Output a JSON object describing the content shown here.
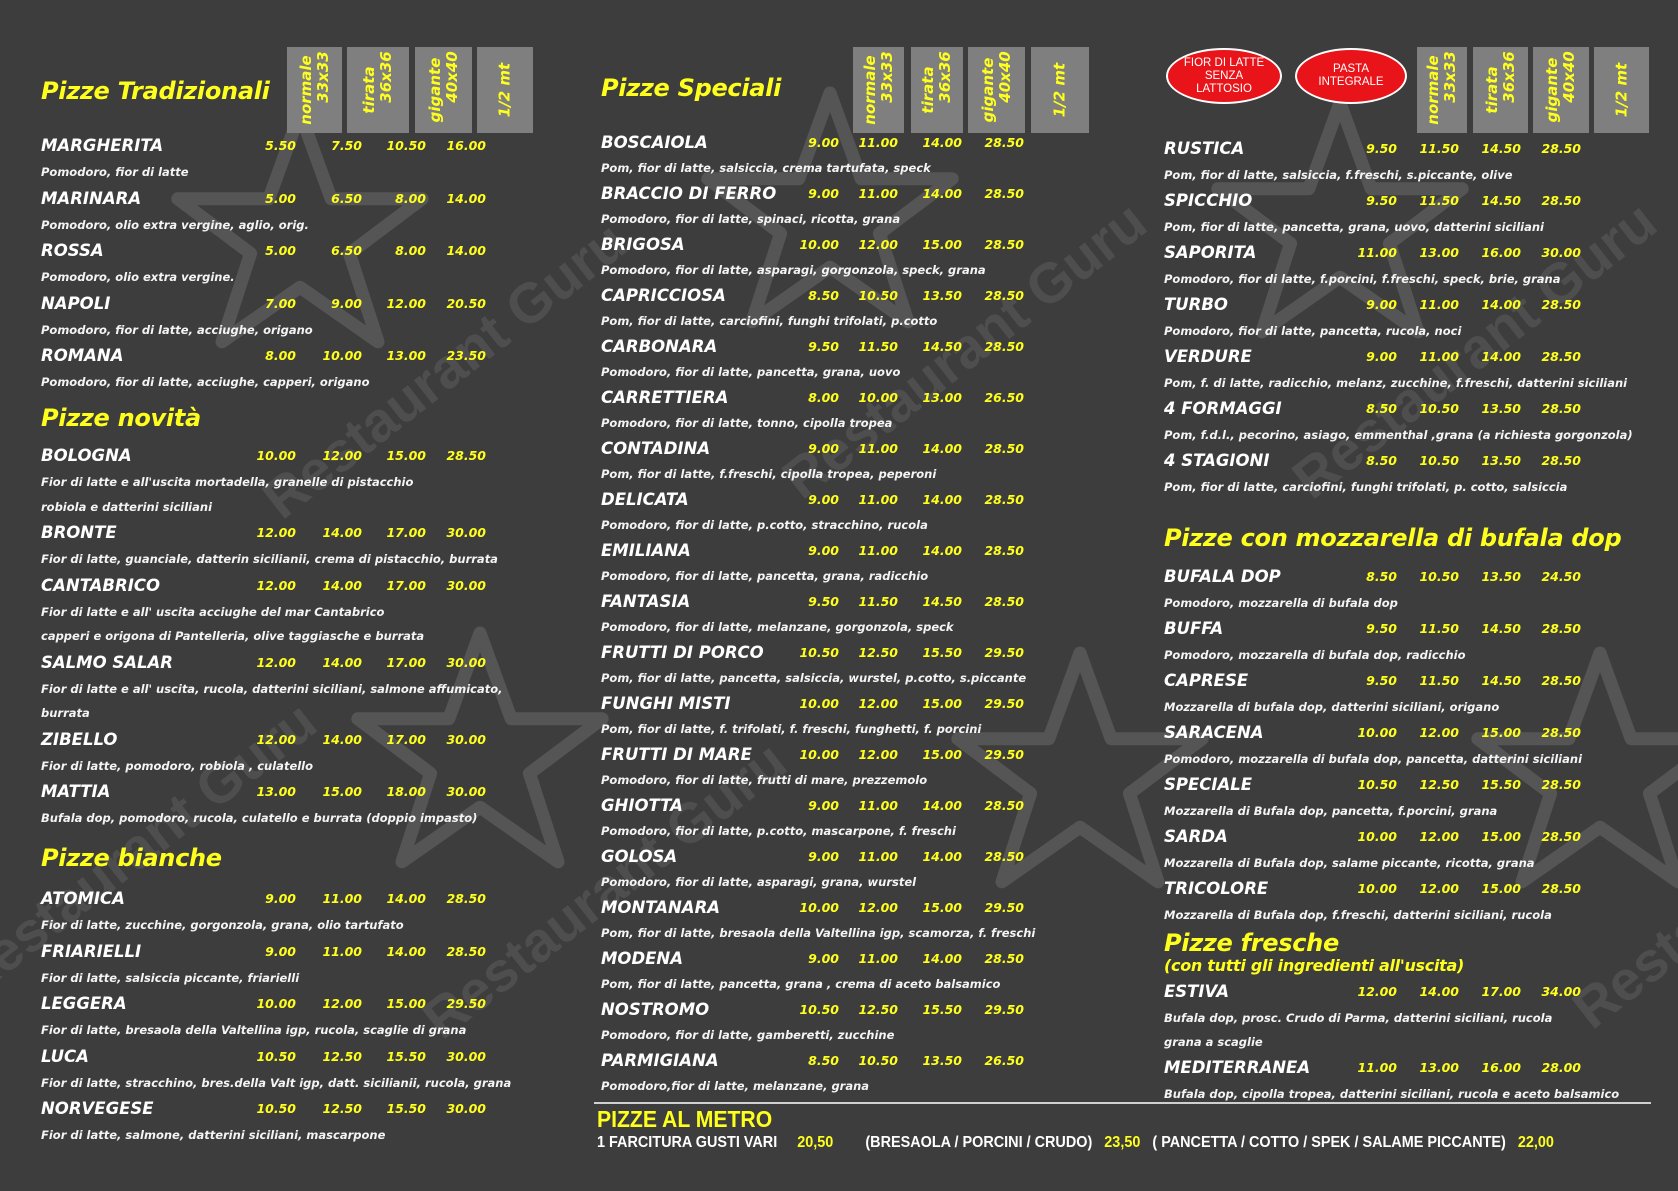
{
  "watermark": "Restaurant Guru",
  "sizes": [
    {
      "name": "normale",
      "dim": "33x33"
    },
    {
      "name": "tirata",
      "dim": "36x36"
    },
    {
      "name": "gigante",
      "dim": "40x40"
    },
    {
      "name": "1/2 mt",
      "dim": ""
    }
  ],
  "badges": [
    "FIOR DI LATTE SENZA LATTOSIO",
    "PASTA INTEGRALE"
  ],
  "columns": [
    {
      "sections": [
        {
          "title": "Pizze Tradizionali",
          "items": [
            {
              "name": "MARGHERITA",
              "prices": [
                "5.50",
                "7.50",
                "10.50",
                "16.00"
              ],
              "desc": [
                "Pomodoro, fior di latte"
              ]
            },
            {
              "name": "MARINARA",
              "prices": [
                "5.00",
                "6.50",
                "8.00",
                "14.00"
              ],
              "desc": [
                "Pomodoro, olio extra vergine, aglio, orig."
              ]
            },
            {
              "name": "ROSSA",
              "prices": [
                "5.00",
                "6.50",
                "8.00",
                "14.00"
              ],
              "desc": [
                "Pomodoro, olio extra vergine."
              ]
            },
            {
              "name": "NAPOLI",
              "prices": [
                "7.00",
                "9.00",
                "12.00",
                "20.50"
              ],
              "desc": [
                "Pomodoro, fior di latte, acciughe, origano"
              ]
            },
            {
              "name": "ROMANA",
              "prices": [
                "8.00",
                "10.00",
                "13.00",
                "23.50"
              ],
              "desc": [
                "Pomodoro, fior di latte, acciughe, capperi, origano"
              ]
            }
          ]
        },
        {
          "title": "Pizze novità",
          "items": [
            {
              "name": "BOLOGNA",
              "prices": [
                "10.00",
                "12.00",
                "15.00",
                "28.50"
              ],
              "desc": [
                "Fior di latte e all'uscita mortadella, granelle di pistacchio",
                "robiola e datterini siciliani"
              ]
            },
            {
              "name": "BRONTE",
              "prices": [
                "12.00",
                "14.00",
                "17.00",
                "30.00"
              ],
              "desc": [
                "Fior di latte, guanciale, datterin sicilianii,  crema di pistacchio, burrata"
              ]
            },
            {
              "name": "CANTABRICO",
              "prices": [
                "12.00",
                "14.00",
                "17.00",
                "30.00"
              ],
              "desc": [
                "Fior di latte e all' uscita acciughe del mar Cantabrico",
                "capperi e origona di Pantelleria, olive taggiasche e burrata"
              ]
            },
            {
              "name": "SALMO SALAR",
              "prices": [
                "12.00",
                "14.00",
                "17.00",
                "30.00"
              ],
              "desc": [
                "Fior di latte e all' uscita, rucola, datterini siciliani, salmone affumicato,",
                "burrata"
              ]
            },
            {
              "name": "ZIBELLO",
              "prices": [
                "12.00",
                "14.00",
                "17.00",
                "30.00"
              ],
              "desc": [
                "Fior di latte, pomodoro, robiola , culatello"
              ]
            },
            {
              "name": "MATTIA",
              "prices": [
                "13.00",
                "15.00",
                "18.00",
                "30.00"
              ],
              "desc": [
                "Bufala dop, pomodoro, rucola, culatello e burrata (doppio impasto)"
              ]
            }
          ]
        },
        {
          "title": "Pizze bianche",
          "items": [
            {
              "name": "ATOMICA",
              "prices": [
                "9.00",
                "11.00",
                "14.00",
                "28.50"
              ],
              "desc": [
                " Fior di latte, zucchine, gorgonzola, grana, olio tartufato"
              ]
            },
            {
              "name": "FRIARIELLI",
              "prices": [
                "9.00",
                "11.00",
                "14.00",
                "28.50"
              ],
              "desc": [
                "Fior di  latte, salsiccia piccante, friarielli"
              ]
            },
            {
              "name": "LEGGERA",
              "prices": [
                "10.00",
                "12.00",
                "15.00",
                "29.50"
              ],
              "desc": [
                "Fior di latte, bresaola della Valtellina igp, rucola, scaglie di grana"
              ]
            },
            {
              "name": "LUCA",
              "prices": [
                "10.50",
                "12.50",
                "15.50",
                "30.00"
              ],
              "desc": [
                "Fior di latte, stracchino, bres.della Valt igp, datt. sicilianii, rucola, grana"
              ]
            },
            {
              "name": "NORVEGESE",
              "prices": [
                "10.50",
                "12.50",
                "15.50",
                "30.00"
              ],
              "desc": [
                "Fior di latte, salmone, datterini siciliani, mascarpone"
              ]
            }
          ]
        }
      ]
    },
    {
      "sections": [
        {
          "title": "Pizze Speciali",
          "items": [
            {
              "name": "BOSCAIOLA",
              "prices": [
                "9.00",
                "11.00",
                "14.00",
                "28.50"
              ],
              "desc": [
                "Pom, fior di latte, salsiccia, crema tartufata, speck"
              ]
            },
            {
              "name": "BRACCIO DI FERRO",
              "prices": [
                "9.00",
                "11.00",
                "14.00",
                "28.50"
              ],
              "desc": [
                "Pomodoro, fior di latte, spinaci, ricotta, grana"
              ]
            },
            {
              "name": "BRIGOSA",
              "prices": [
                "10.00",
                "12.00",
                "15.00",
                "28.50"
              ],
              "desc": [
                "Pomodoro, fior di latte, asparagi, gorgonzola, speck, grana"
              ]
            },
            {
              "name": "CAPRICCIOSA",
              "prices": [
                "8.50",
                "10.50",
                "13.50",
                "28.50"
              ],
              "desc": [
                "Pom, fior di latte, carciofini, funghi trifolati, p.cotto"
              ]
            },
            {
              "name": "CARBONARA",
              "prices": [
                "9.50",
                "11.50",
                "14.50",
                "28.50"
              ],
              "desc": [
                "Pomodoro, fior di latte, pancetta, grana, uovo"
              ]
            },
            {
              "name": "CARRETTIERA",
              "prices": [
                "8.00",
                "10.00",
                "13.00",
                "26.50"
              ],
              "desc": [
                "Pomodoro, fior di latte, tonno, cipolla tropea"
              ]
            },
            {
              "name": "CONTADINA",
              "prices": [
                "9.00",
                "11.00",
                "14.00",
                "28.50"
              ],
              "desc": [
                "Pom, fior di latte, f.freschi, cipolla tropea, peperoni"
              ]
            },
            {
              "name": "DELICATA",
              "prices": [
                "9.00",
                "11.00",
                "14.00",
                "28.50"
              ],
              "desc": [
                "Pomodoro, fior di latte, p.cotto, stracchino, rucola"
              ]
            },
            {
              "name": "EMILIANA",
              "prices": [
                "9.00",
                "11.00",
                "14.00",
                "28.50"
              ],
              "desc": [
                "Pomodoro, fior di latte, pancetta, grana, radicchio"
              ]
            },
            {
              "name": "FANTASIA",
              "prices": [
                "9.50",
                "11.50",
                "14.50",
                "28.50"
              ],
              "desc": [
                "Pomodoro, fior di latte, melanzane, gorgonzola, speck"
              ]
            },
            {
              "name": "FRUTTI DI PORCO",
              "prices": [
                "10.50",
                "12.50",
                "15.50",
                "29.50"
              ],
              "desc": [
                "Pom, fior di latte, pancetta, salsiccia, wurstel, p.cotto, s.piccante"
              ]
            },
            {
              "name": "FUNGHI MISTI",
              "prices": [
                "10.00",
                "12.00",
                "15.00",
                "29.50"
              ],
              "desc": [
                "Pom, fior di latte, f. trifolati, f. freschi, funghetti, f. porcini"
              ]
            },
            {
              "name": "FRUTTI DI MARE",
              "prices": [
                "10.00",
                "12.00",
                "15.00",
                "29.50"
              ],
              "desc": [
                "Pomodoro, fior di latte, frutti di mare, prezzemolo"
              ]
            },
            {
              "name": "GHIOTTA",
              "prices": [
                "9.00",
                "11.00",
                "14.00",
                "28.50"
              ],
              "desc": [
                "Pomodoro, fior di latte, p.cotto, mascarpone, f. freschi"
              ]
            },
            {
              "name": "GOLOSA",
              "prices": [
                "9.00",
                "11.00",
                "14.00",
                "28.50"
              ],
              "desc": [
                "Pomodoro, fior di latte, asparagi, grana, wurstel"
              ]
            },
            {
              "name": "MONTANARA",
              "prices": [
                "10.00",
                "12.00",
                "15.00",
                "29.50"
              ],
              "desc": [
                "Pom, fior di latte, bresaola della Valtellina igp, scamorza, f. freschi"
              ]
            },
            {
              "name": "MODENA",
              "prices": [
                "9.00",
                "11.00",
                "14.00",
                "28.50"
              ],
              "desc": [
                "Pom, fior di latte, pancetta, grana , crema di aceto balsamico"
              ]
            },
            {
              "name": "NOSTROMO",
              "prices": [
                "10.50",
                "12.50",
                "15.50",
                "29.50"
              ],
              "desc": [
                "Pomodoro, fior di latte, gamberetti, zucchine"
              ]
            },
            {
              "name": "PARMIGIANA",
              "prices": [
                "8.50",
                "10.50",
                "13.50",
                "26.50"
              ],
              "desc": [
                "Pomodoro,fior di latte, melanzane, grana"
              ]
            }
          ]
        }
      ]
    },
    {
      "sections": [
        {
          "title": "",
          "items": [
            {
              "name": "RUSTICA",
              "prices": [
                "9.50",
                "11.50",
                "14.50",
                "28.50"
              ],
              "desc": [
                "Pom, fior di latte, salsiccia, f.freschi, s.piccante, olive"
              ]
            },
            {
              "name": "SPICCHIO",
              "prices": [
                "9.50",
                "11.50",
                "14.50",
                "28.50"
              ],
              "desc": [
                "Pom, fior di latte, pancetta, grana, uovo, datterini siciliani"
              ]
            },
            {
              "name": "SAPORITA",
              "prices": [
                "11.00",
                "13.00",
                "16.00",
                "30.00"
              ],
              "desc": [
                "Pomodoro, fior di latte, f.porcini, f.freschi, speck, brie, grana"
              ]
            },
            {
              "name": "TURBO",
              "prices": [
                "9.00",
                "11.00",
                "14.00",
                "28.50"
              ],
              "desc": [
                "Pomodoro, fior di latte, pancetta, rucola, noci"
              ]
            },
            {
              "name": "VERDURE",
              "prices": [
                "9.00",
                "11.00",
                "14.00",
                "28.50"
              ],
              "desc": [
                "Pom, f. di latte, radicchio, melanz, zucchine, f.freschi, datterini siciliani"
              ]
            },
            {
              "name": "4 FORMAGGI",
              "prices": [
                "8.50",
                "10.50",
                "13.50",
                "28.50"
              ],
              "desc": [
                "Pom, f.d.l., pecorino, asiago, emmenthal ,grana (a richiesta gorgonzola)"
              ]
            },
            {
              "name": "4 STAGIONI",
              "prices": [
                "8.50",
                "10.50",
                "13.50",
                "28.50"
              ],
              "desc": [
                "Pom, fior di latte, carciofini, funghi trifolati, p. cotto, salsiccia"
              ]
            }
          ]
        },
        {
          "title": "Pizze con mozzarella di bufala dop",
          "items": [
            {
              "name": "BUFALA DOP",
              "prices": [
                "8.50",
                "10.50",
                "13.50",
                "24.50"
              ],
              "desc": [
                "Pomodoro, mozzarella di bufala dop"
              ]
            },
            {
              "name": "BUFFA",
              "prices": [
                "9.50",
                "11.50",
                "14.50",
                "28.50"
              ],
              "desc": [
                "Pomodoro, mozzarella di bufala dop, radicchio"
              ]
            },
            {
              "name": "CAPRESE",
              "prices": [
                "9.50",
                "11.50",
                "14.50",
                "28.50"
              ],
              "desc": [
                "Mozzarella di bufala dop, datterini siciliani, origano"
              ]
            },
            {
              "name": "SARACENA",
              "prices": [
                "10.00",
                "12.00",
                "15.00",
                "28.50"
              ],
              "desc": [
                "Pomodoro, mozzarella di bufala dop, pancetta, datterini siciliani"
              ]
            },
            {
              "name": "SPECIALE",
              "prices": [
                "10.50",
                "12.50",
                "15.50",
                "28.50"
              ],
              "desc": [
                "Mozzarella di Bufala dop, pancetta, f.porcini, grana"
              ]
            },
            {
              "name": "SARDA",
              "prices": [
                "10.00",
                "12.00",
                "15.00",
                "28.50"
              ],
              "desc": [
                "Mozzarella di Bufala dop, salame piccante, ricotta, grana"
              ]
            },
            {
              "name": "TRICOLORE",
              "prices": [
                "10.00",
                "12.00",
                "15.00",
                "28.50"
              ],
              "desc": [
                "Mozzarella di Bufala dop, f.freschi, datterini siciliani, rucola"
              ]
            }
          ]
        },
        {
          "title": "Pizze fresche",
          "subtitle": "(con tutti gli ingredienti all'uscita)",
          "items": [
            {
              "name": "ESTIVA",
              "prices": [
                "12.00",
                "14.00",
                "17.00",
                "34.00"
              ],
              "desc": [
                "Bufala dop, prosc. Crudo di Parma, datterini siciliani, rucola",
                "grana a scaglie"
              ]
            },
            {
              "name": "MEDITERRANEA",
              "prices": [
                "11.00",
                "13.00",
                "16.00",
                "28.00"
              ],
              "desc": [
                "Bufala dop, cipolla tropea, datterini siciliani, rucola e aceto balsamico"
              ]
            }
          ]
        }
      ]
    }
  ],
  "metro": {
    "title": "PIZZE AL METRO",
    "line": [
      {
        "text": "1 FARCITURA GUSTI VARI",
        "price": "20,50"
      },
      {
        "text": "(BRESAOLA / PORCINI / CRUDO)",
        "price": "23,50"
      },
      {
        "text": "( PANCETTA / COTTO / SPEK / SALAME PICCANTE)",
        "price": "22,00"
      }
    ]
  }
}
